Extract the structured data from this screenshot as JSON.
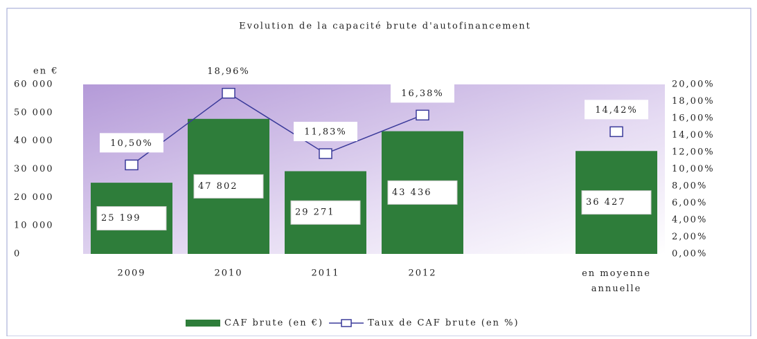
{
  "chart_data": {
    "type": "bar",
    "title": "Evolution de la capacité brute d'autofinancement",
    "y_label": "en €",
    "categories": [
      "2009",
      "2010",
      "2011",
      "2012",
      null,
      "en moyenne annuelle"
    ],
    "series": [
      {
        "name": "CAF brute (en €)",
        "color": "#2e7d3a",
        "type": "bar",
        "values": [
          25199,
          47802,
          29271,
          43436,
          null,
          36427
        ],
        "value_labels": [
          "25 199",
          "47 802",
          "29 271",
          "43 436",
          null,
          "36 427"
        ]
      },
      {
        "name": "Taux de CAF brute (en %)",
        "color": "#3a3a9a",
        "type": "line",
        "axis": "y2",
        "values": [
          10.5,
          18.96,
          11.83,
          16.38,
          null,
          14.42
        ],
        "value_labels": [
          "10,50%",
          "18,96%",
          "11,83%",
          "16,38%",
          null,
          "14,42%"
        ]
      }
    ],
    "ylim": [
      0,
      60000
    ],
    "yticks": [
      0,
      {
        "value": 10000,
        "label": "10 000"
      },
      {
        "value": 20000,
        "label": "20 000"
      },
      {
        "value": 30000,
        "label": "30 000"
      },
      {
        "value": 40000,
        "label": "40 000"
      },
      {
        "value": 50000,
        "label": "50 000"
      },
      {
        "value": 60000,
        "label": "60 000"
      }
    ],
    "y2lim": [
      0,
      20
    ],
    "y2ticks": [
      {
        "value": 0,
        "label": "0,00%"
      },
      {
        "value": 2,
        "label": "2,00%"
      },
      {
        "value": 4,
        "label": "4,00%"
      },
      {
        "value": 6,
        "label": "6,00%"
      },
      {
        "value": 8,
        "label": "8,00%"
      },
      {
        "value": 10,
        "label": "10,00%"
      },
      {
        "value": 12,
        "label": "12,00%"
      },
      {
        "value": 14,
        "label": "14,00%"
      },
      {
        "value": 16,
        "label": "16,00%"
      },
      {
        "value": 18,
        "label": "18,00%"
      },
      {
        "value": 20,
        "label": "20,00%"
      }
    ],
    "legend": "bottom"
  }
}
